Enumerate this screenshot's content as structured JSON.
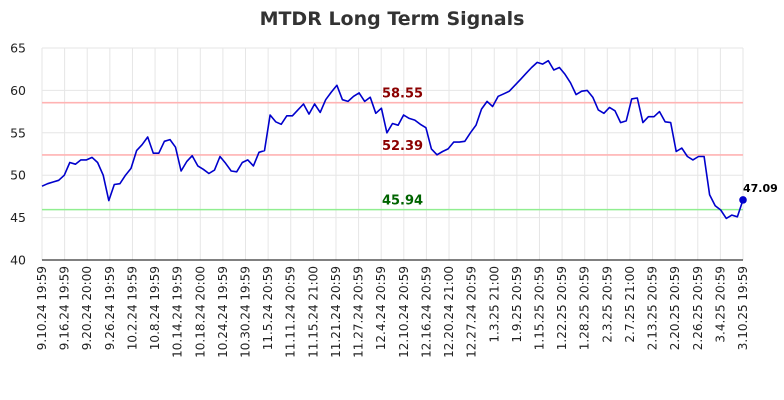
{
  "chart_data": {
    "type": "line",
    "title": "MTDR Long Term Signals",
    "xlabel": "",
    "ylabel": "",
    "ylim": [
      40,
      65
    ],
    "yticks": [
      40,
      45,
      50,
      55,
      60,
      65
    ],
    "grid": true,
    "x_tick_labels": [
      "9.10.24 19:59",
      "9.16.24 19:59",
      "9.20.24 20:00",
      "9.26.24 19:59",
      "10.2.24 19:59",
      "10.8.24 19:59",
      "10.14.24 19:59",
      "10.18.24 20:00",
      "10.24.24 19:59",
      "10.30.24 19:59",
      "11.5.24 20:59",
      "11.11.24 20:59",
      "11.15.24 21:00",
      "11.21.24 20:59",
      "11.27.24 20:59",
      "12.4.24 20:59",
      "12.10.24 20:59",
      "12.16.24 20:59",
      "12.20.24 21:00",
      "12.27.24 20:59",
      "1.3.25 21:00",
      "1.9.25 20:59",
      "1.15.25 20:59",
      "1.22.25 20:59",
      "1.28.25 20:59",
      "2.3.25 20:59",
      "2.7.25 21:00",
      "2.13.25 20:59",
      "2.20.25 20:59",
      "2.26.25 20:59",
      "3.4.25 20:59",
      "3.10.25 19:59"
    ],
    "levels": [
      {
        "value": 58.55,
        "label": "58.55",
        "line_color": "#ffb3b3",
        "text_color": "#8b0000"
      },
      {
        "value": 52.39,
        "label": "52.39",
        "line_color": "#ffb3b3",
        "text_color": "#8b0000"
      },
      {
        "value": 45.94,
        "label": "45.94",
        "line_color": "#90ee90",
        "text_color": "#006400"
      }
    ],
    "series": [
      {
        "color": "#0000cc",
        "values": [
          48.7,
          49.0,
          49.2,
          49.4,
          50.0,
          51.5,
          51.3,
          51.8,
          51.8,
          52.1,
          51.5,
          50.0,
          47.0,
          48.9,
          49.0,
          50.0,
          50.8,
          52.9,
          53.6,
          54.5,
          52.6,
          52.6,
          54.0,
          54.2,
          53.3,
          50.5,
          51.6,
          52.3,
          51.1,
          50.7,
          50.2,
          50.6,
          52.2,
          51.4,
          50.5,
          50.4,
          51.5,
          51.8,
          51.1,
          52.7,
          52.9,
          57.1,
          56.3,
          56.0,
          57.0,
          57.0,
          57.7,
          58.4,
          57.2,
          58.4,
          57.4,
          58.9,
          59.8,
          60.6,
          58.9,
          58.7,
          59.3,
          59.7,
          58.7,
          59.2,
          57.3,
          57.9,
          55.0,
          56.1,
          55.9,
          57.1,
          56.7,
          56.5,
          56.0,
          55.6,
          53.1,
          52.4,
          52.8,
          53.1,
          53.9,
          53.9,
          54.0,
          55.0,
          55.9,
          57.8,
          58.7,
          58.1,
          59.3,
          59.6,
          59.9,
          60.6,
          61.3,
          62.0,
          62.7,
          63.3,
          63.1,
          63.5,
          62.4,
          62.7,
          61.9,
          60.9,
          59.5,
          59.9,
          60.0,
          59.2,
          57.7,
          57.3,
          58.0,
          57.6,
          56.2,
          56.4,
          59.0,
          59.1,
          56.2,
          56.9,
          56.9,
          57.5,
          56.3,
          56.2,
          52.8,
          53.2,
          52.2,
          51.8,
          52.2,
          52.2,
          47.7,
          46.4,
          45.9,
          44.9,
          45.3,
          45.1,
          47.09
        ]
      }
    ],
    "last_value": {
      "value": 47.09,
      "label": "47.09"
    }
  }
}
